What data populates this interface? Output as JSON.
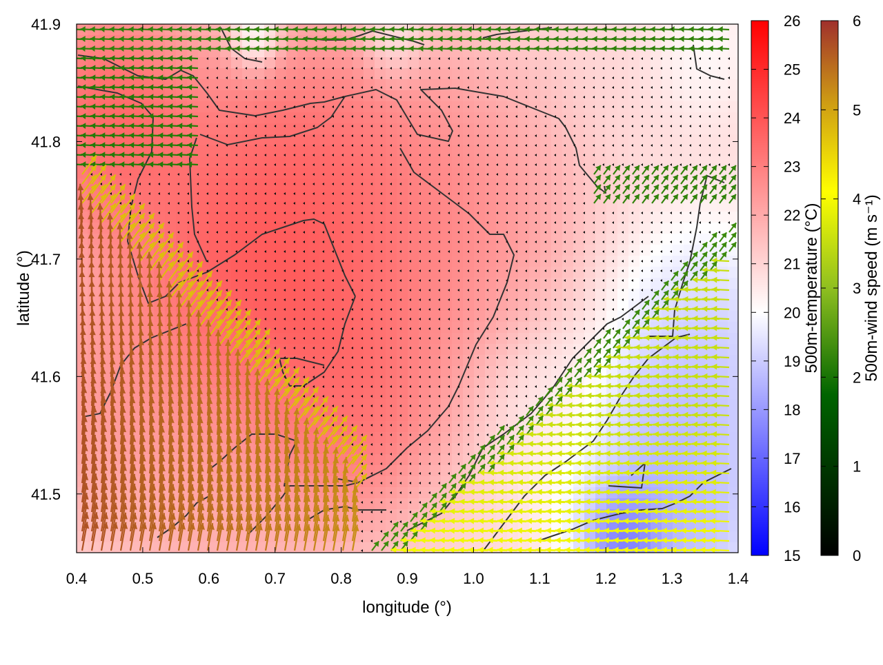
{
  "chart_data": {
    "type": "heatmap",
    "title": "",
    "xlabel": "longitude (°)",
    "ylabel": "latitude (°)",
    "xlim": [
      0.4,
      1.4
    ],
    "ylim": [
      41.45,
      41.9
    ],
    "xticks": [
      0.4,
      0.5,
      0.6,
      0.7,
      0.8,
      0.9,
      1.0,
      1.1,
      1.2,
      1.3,
      1.4
    ],
    "xtick_labels": [
      "0.4",
      "0.5",
      "0.6",
      "0.7",
      "0.8",
      "0.9",
      "1.0",
      "1.1",
      "1.2",
      "1.3",
      "1.4"
    ],
    "yticks": [
      41.5,
      41.6,
      41.7,
      41.8,
      41.9
    ],
    "ytick_labels": [
      "41.5",
      "41.6",
      "41.7",
      "41.8",
      "41.9"
    ],
    "grid": false,
    "colorbars": [
      {
        "label": "500m-temperature (°C)",
        "range": [
          15,
          26
        ],
        "ticks": [
          15,
          16,
          17,
          18,
          19,
          20,
          21,
          22,
          23,
          24,
          25,
          26
        ],
        "tick_labels": [
          "15",
          "16",
          "17",
          "18",
          "19",
          "20",
          "21",
          "22",
          "23",
          "24",
          "25",
          "26"
        ],
        "colors": [
          "#0000ff",
          "#ffffff",
          "#ff0000"
        ]
      },
      {
        "label": "500m-wind speed (m s⁻¹)",
        "range": [
          0,
          6
        ],
        "ticks": [
          0,
          1,
          2,
          3,
          4,
          5,
          6
        ],
        "tick_labels": [
          "0",
          "1",
          "2",
          "3",
          "4",
          "5",
          "6"
        ],
        "colors": [
          "#000000",
          "#006400",
          "#9acd32",
          "#ffff00",
          "#cd9a14",
          "#a0302c"
        ]
      }
    ],
    "temperature_field": {
      "background": 21.3,
      "features": [
        {
          "lon": 0.66,
          "lat": 41.68,
          "radius": 0.22,
          "value": 25.4
        },
        {
          "lon": 0.78,
          "lat": 41.74,
          "radius": 0.2,
          "value": 24.6
        },
        {
          "lon": 0.45,
          "lat": 41.82,
          "radius": 0.14,
          "value": 25.0
        },
        {
          "lon": 0.82,
          "lat": 41.58,
          "radius": 0.14,
          "value": 24.4
        },
        {
          "lon": 0.98,
          "lat": 41.73,
          "radius": 0.18,
          "value": 23.6
        },
        {
          "lon": 0.45,
          "lat": 41.58,
          "radius": 0.14,
          "value": 23.2
        },
        {
          "lon": 0.6,
          "lat": 41.52,
          "radius": 0.16,
          "value": 22.6
        },
        {
          "lon": 1.3,
          "lat": 41.5,
          "radius": 0.16,
          "value": 17.6
        },
        {
          "lon": 1.35,
          "lat": 41.62,
          "radius": 0.14,
          "value": 18.6
        },
        {
          "lon": 1.23,
          "lat": 41.46,
          "radius": 0.06,
          "value": 15.8
        },
        {
          "lon": 0.67,
          "lat": 41.89,
          "radius": 0.04,
          "value": 19.5
        },
        {
          "lon": 0.88,
          "lat": 41.89,
          "radius": 0.05,
          "value": 20.5
        },
        {
          "lon": 1.35,
          "lat": 41.88,
          "radius": 0.08,
          "value": 20.3
        },
        {
          "lon": 1.12,
          "lat": 41.58,
          "radius": 0.1,
          "value": 20.8
        }
      ]
    },
    "wind_regimes": [
      {
        "region": "south-west",
        "speed": 6,
        "direction": "north"
      },
      {
        "region": "front south-west",
        "speed": 4.3,
        "direction": "north-east"
      },
      {
        "region": "central",
        "speed": 0.4,
        "direction": "west"
      },
      {
        "region": "south-east",
        "speed": 3.2,
        "direction": "west"
      },
      {
        "region": "east front",
        "speed": 1.7,
        "direction": "north-east"
      },
      {
        "region": "north",
        "speed": 1.4,
        "direction": "west"
      }
    ],
    "contour_lines": "dark gray terrain/coastline contours"
  }
}
